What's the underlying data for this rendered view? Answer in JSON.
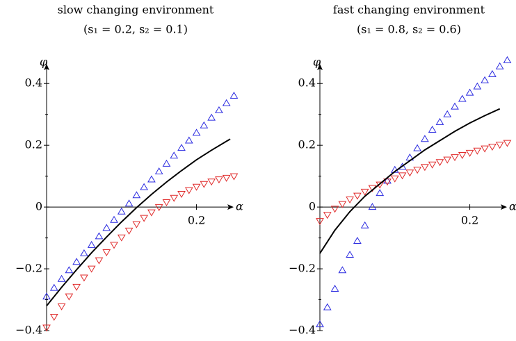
{
  "chart_data": [
    {
      "type": "line",
      "title": "slow changing environment",
      "subtitle": "(s₁ = 0.2, s₂ = 0.1)",
      "x_label": "α",
      "y_label": "φ",
      "xlim": [
        0,
        0.244
      ],
      "ylim": [
        -0.4,
        0.45
      ],
      "xticks": [
        0.2
      ],
      "yticks": [
        {
          "value": -0.4,
          "label": "−0.4"
        },
        {
          "value": -0.2,
          "label": "−0.2"
        },
        0,
        0.2,
        0.4
      ],
      "yminor": [
        -0.3,
        -0.1,
        0.1,
        0.3
      ],
      "series": [
        {
          "color": "#2a2ae0",
          "marker": "triangle-up",
          "x": [
            0,
            0.01,
            0.02,
            0.03,
            0.04,
            0.05,
            0.06,
            0.07,
            0.08,
            0.09,
            0.1,
            0.11,
            0.12,
            0.13,
            0.14,
            0.15,
            0.16,
            0.17,
            0.18,
            0.19,
            0.2,
            0.21,
            0.22,
            0.23,
            0.24,
            0.25
          ],
          "values": [
            -0.29,
            -0.262,
            -0.233,
            -0.205,
            -0.178,
            -0.15,
            -0.123,
            -0.095,
            -0.068,
            -0.042,
            -0.015,
            0.011,
            0.038,
            0.064,
            0.089,
            0.115,
            0.14,
            0.166,
            0.191,
            0.215,
            0.24,
            0.264,
            0.289,
            0.313,
            0.336,
            0.36
          ]
        },
        {
          "color": "#e02a2a",
          "marker": "triangle-down",
          "x": [
            0,
            0.01,
            0.02,
            0.03,
            0.04,
            0.05,
            0.06,
            0.07,
            0.08,
            0.09,
            0.1,
            0.11,
            0.12,
            0.13,
            0.14,
            0.15,
            0.16,
            0.17,
            0.18,
            0.19,
            0.2,
            0.21,
            0.22,
            0.23,
            0.24,
            0.25
          ],
          "values": [
            -0.39,
            -0.355,
            -0.321,
            -0.289,
            -0.258,
            -0.228,
            -0.199,
            -0.172,
            -0.146,
            -0.122,
            -0.098,
            -0.076,
            -0.055,
            -0.035,
            -0.017,
            0,
            0.016,
            0.03,
            0.043,
            0.055,
            0.066,
            0.075,
            0.083,
            0.09,
            0.095,
            0.1
          ]
        },
        {
          "color": "#000000",
          "marker": "none",
          "x": [
            0,
            0.02,
            0.04,
            0.06,
            0.08,
            0.1,
            0.12,
            0.14,
            0.16,
            0.18,
            0.2,
            0.22,
            0.24,
            0.245
          ],
          "values": [
            -0.32,
            -0.26,
            -0.203,
            -0.148,
            -0.097,
            -0.048,
            -0.002,
            0.041,
            0.081,
            0.118,
            0.153,
            0.184,
            0.213,
            0.22
          ]
        }
      ]
    },
    {
      "type": "line",
      "title": "fast changing environment",
      "subtitle": "(s₁ = 0.8, s₂ = 0.6)",
      "x_label": "α",
      "y_label": "φ",
      "xlim": [
        0,
        0.244
      ],
      "ylim": [
        -0.4,
        0.45
      ],
      "xticks": [
        0.2
      ],
      "yticks": [
        {
          "value": -0.4,
          "label": "−0.4"
        },
        {
          "value": -0.2,
          "label": "−0.2"
        },
        0,
        0.2,
        0.4
      ],
      "yminor": [
        -0.3,
        -0.1,
        0.1,
        0.3
      ],
      "series": [
        {
          "color": "#2a2ae0",
          "marker": "triangle-up",
          "x": [
            0,
            0.01,
            0.02,
            0.03,
            0.04,
            0.05,
            0.06,
            0.07,
            0.08,
            0.09,
            0.1,
            0.11,
            0.12,
            0.13,
            0.14,
            0.15,
            0.16,
            0.17,
            0.18,
            0.19,
            0.2,
            0.21,
            0.22,
            0.23,
            0.24,
            0.25
          ],
          "values": [
            -0.38,
            -0.325,
            -0.265,
            -0.205,
            -0.155,
            -0.11,
            -0.06,
            0,
            0.045,
            0.085,
            0.12,
            0.13,
            0.16,
            0.19,
            0.22,
            0.25,
            0.275,
            0.3,
            0.325,
            0.35,
            0.37,
            0.39,
            0.41,
            0.43,
            0.455,
            0.475
          ]
        },
        {
          "color": "#e02a2a",
          "marker": "triangle-down",
          "x": [
            0,
            0.01,
            0.02,
            0.03,
            0.04,
            0.05,
            0.06,
            0.07,
            0.08,
            0.09,
            0.1,
            0.11,
            0.12,
            0.13,
            0.14,
            0.15,
            0.16,
            0.17,
            0.18,
            0.19,
            0.2,
            0.21,
            0.22,
            0.23,
            0.24,
            0.25
          ],
          "values": [
            -0.045,
            -0.025,
            -0.005,
            0.01,
            0.025,
            0.037,
            0.05,
            0.062,
            0.073,
            0.083,
            0.093,
            0.103,
            0.112,
            0.121,
            0.13,
            0.138,
            0.146,
            0.154,
            0.162,
            0.169,
            0.176,
            0.183,
            0.19,
            0.196,
            0.202,
            0.208
          ]
        },
        {
          "color": "#000000",
          "marker": "none",
          "x": [
            0,
            0.02,
            0.04,
            0.06,
            0.08,
            0.1,
            0.12,
            0.14,
            0.16,
            0.18,
            0.2,
            0.22,
            0.24
          ],
          "values": [
            -0.15,
            -0.075,
            -0.015,
            0.035,
            0.075,
            0.115,
            0.15,
            0.185,
            0.215,
            0.245,
            0.272,
            0.296,
            0.318
          ]
        }
      ]
    }
  ]
}
